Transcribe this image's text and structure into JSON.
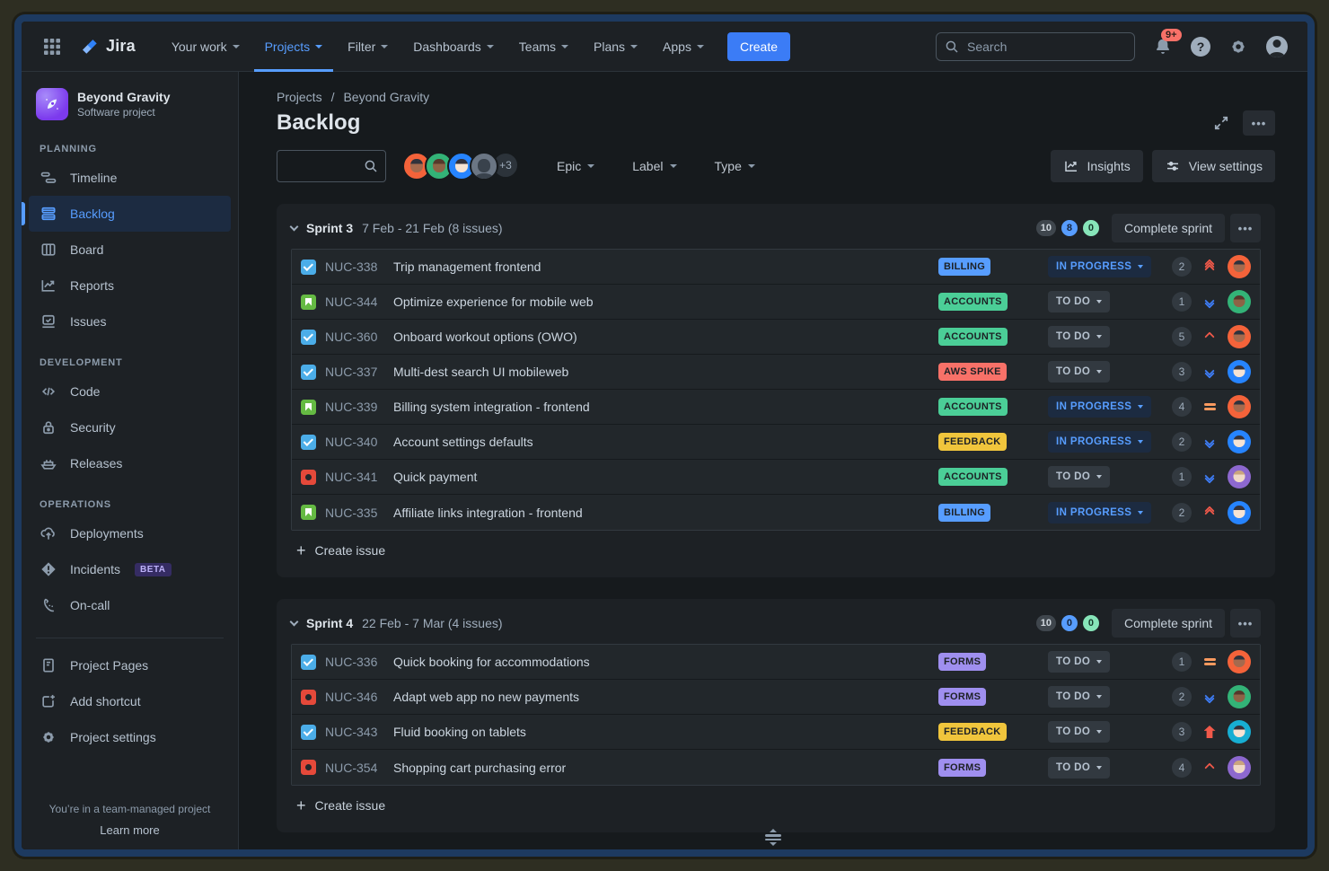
{
  "colors": {
    "accent_blue": "#579dff",
    "green": "#4bce97",
    "red": "#f87168",
    "yellow": "#f0c53c",
    "purple": "#9f8fef",
    "selected_bg": "#1c2b41"
  },
  "icons": {
    "more": "•••",
    "help": "?",
    "plus": "+",
    "app_grid": "grid-3x3",
    "search": "magnifier",
    "bell": "notifications",
    "gear": "settings",
    "person": "profile"
  },
  "topnav": {
    "logo": "Jira",
    "items": [
      {
        "label": "Your work"
      },
      {
        "label": "Projects"
      },
      {
        "label": "Filter"
      },
      {
        "label": "Dashboards"
      },
      {
        "label": "Teams"
      },
      {
        "label": "Plans"
      },
      {
        "label": "Apps"
      }
    ],
    "active_item": "Projects",
    "create_button": "Create",
    "search_placeholder": "Search",
    "notification_badge": "9+"
  },
  "sidebar": {
    "project_name": "Beyond Gravity",
    "project_type": "Software project",
    "sections": [
      {
        "title": "PLANNING",
        "items": [
          {
            "label": "Timeline"
          },
          {
            "label": "Backlog",
            "active": true
          },
          {
            "label": "Board"
          },
          {
            "label": "Reports"
          },
          {
            "label": "Issues"
          }
        ]
      },
      {
        "title": "DEVELOPMENT",
        "items": [
          {
            "label": "Code"
          },
          {
            "label": "Security"
          },
          {
            "label": "Releases"
          }
        ]
      },
      {
        "title": "OPERATIONS",
        "items": [
          {
            "label": "Deployments"
          },
          {
            "label": "Incidents",
            "badge": "BETA"
          },
          {
            "label": "On-call"
          }
        ]
      }
    ],
    "footer_items": [
      {
        "label": "Project Pages"
      },
      {
        "label": "Add shortcut"
      },
      {
        "label": "Project settings"
      }
    ],
    "footer_note": "You’re in a team-managed project",
    "footer_link": "Learn more"
  },
  "main": {
    "breadcrumb": [
      "Projects",
      "Beyond Gravity"
    ],
    "title": "Backlog",
    "filter": {
      "avatars": [
        "orange",
        "green",
        "blue",
        "gray"
      ],
      "overflow": "+3",
      "dropdowns": [
        {
          "label": "Epic"
        },
        {
          "label": "Label"
        },
        {
          "label": "Type"
        }
      ],
      "insights_button": "Insights",
      "view_settings_button": "View settings"
    },
    "sprints": [
      {
        "name": "Sprint 3",
        "dates": "7 Feb - 21 Feb (8 issues)",
        "counts": [
          "10",
          "8",
          "0"
        ],
        "complete_button": "Complete sprint",
        "create_issue": "Create issue",
        "issues": [
          {
            "type": "task",
            "key": "NUC-338",
            "summary": "Trip management frontend",
            "label": "BILLING",
            "label_color": "blue",
            "status": "IN PROGRESS",
            "status_kind": "inprogress",
            "points": "2",
            "priority": "highest",
            "avatar": "orange"
          },
          {
            "type": "story",
            "key": "NUC-344",
            "summary": "Optimize experience for mobile web",
            "label": "ACCOUNTS",
            "label_color": "green",
            "status": "TO DO",
            "status_kind": "todo",
            "points": "1",
            "priority": "lowest",
            "avatar": "green"
          },
          {
            "type": "task",
            "key": "NUC-360",
            "summary": "Onboard workout options (OWO)",
            "label": "ACCOUNTS",
            "label_color": "green",
            "status": "TO DO",
            "status_kind": "todo",
            "points": "5",
            "priority": "high",
            "avatar": "orange"
          },
          {
            "type": "task",
            "key": "NUC-337",
            "summary": "Multi-dest search UI mobileweb",
            "label": "AWS SPIKE",
            "label_color": "red",
            "status": "TO DO",
            "status_kind": "todo",
            "points": "3",
            "priority": "lowest",
            "avatar": "blue"
          },
          {
            "type": "story",
            "key": "NUC-339",
            "summary": "Billing system integration - frontend",
            "label": "ACCOUNTS",
            "label_color": "green",
            "status": "IN PROGRESS",
            "status_kind": "inprogress",
            "points": "4",
            "priority": "medium",
            "avatar": "orange"
          },
          {
            "type": "task",
            "key": "NUC-340",
            "summary": "Account settings defaults",
            "label": "FEEDBACK",
            "label_color": "yellow",
            "status": "IN PROGRESS",
            "status_kind": "inprogress",
            "points": "2",
            "priority": "lowest",
            "avatar": "blue"
          },
          {
            "type": "bug",
            "key": "NUC-341",
            "summary": "Quick payment",
            "label": "ACCOUNTS",
            "label_color": "green",
            "status": "TO DO",
            "status_kind": "todo",
            "points": "1",
            "priority": "lowest",
            "avatar": "purple"
          },
          {
            "type": "story",
            "key": "NUC-335",
            "summary": "Affiliate links integration - frontend",
            "label": "BILLING",
            "label_color": "blue",
            "status": "IN PROGRESS",
            "status_kind": "inprogress",
            "points": "2",
            "priority": "veryhigh",
            "avatar": "blue"
          }
        ]
      },
      {
        "name": "Sprint 4",
        "dates": "22 Feb - 7 Mar (4 issues)",
        "counts": [
          "10",
          "0",
          "0"
        ],
        "complete_button": "Complete sprint",
        "create_issue": "Create issue",
        "issues": [
          {
            "type": "task",
            "key": "NUC-336",
            "summary": "Quick booking for accommodations",
            "label": "FORMS",
            "label_color": "purple",
            "status": "TO DO",
            "status_kind": "todo",
            "points": "1",
            "priority": "medium",
            "avatar": "orange"
          },
          {
            "type": "bug",
            "key": "NUC-346",
            "summary": "Adapt web app no new payments",
            "label": "FORMS",
            "label_color": "purple",
            "status": "TO DO",
            "status_kind": "todo",
            "points": "2",
            "priority": "lowest",
            "avatar": "green"
          },
          {
            "type": "task",
            "key": "NUC-343",
            "summary": "Fluid booking on tablets",
            "label": "FEEDBACK",
            "label_color": "yellow",
            "status": "TO DO",
            "status_kind": "todo",
            "points": "3",
            "priority": "critical",
            "avatar": "teal"
          },
          {
            "type": "bug",
            "key": "NUC-354",
            "summary": "Shopping cart purchasing error",
            "label": "FORMS",
            "label_color": "purple",
            "status": "TO DO",
            "status_kind": "todo",
            "points": "4",
            "priority": "high",
            "avatar": "purple"
          }
        ]
      }
    ]
  }
}
